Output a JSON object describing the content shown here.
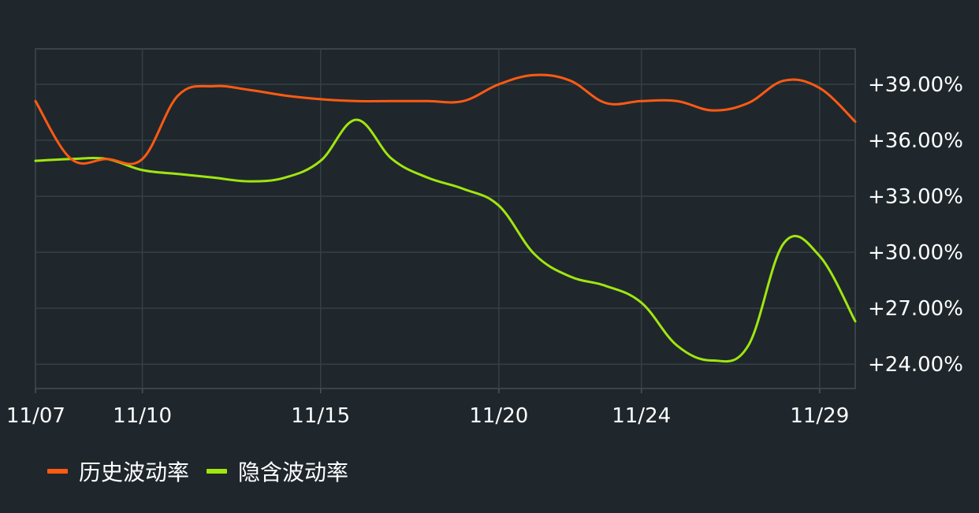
{
  "chart_data": {
    "type": "line",
    "x": [
      "11/07",
      "11/08",
      "11/09",
      "11/10",
      "11/11",
      "11/12",
      "11/13",
      "11/14",
      "11/15",
      "11/16",
      "11/17",
      "11/18",
      "11/19",
      "11/20",
      "11/21",
      "11/22",
      "11/23",
      "11/24",
      "11/25",
      "11/26",
      "11/27",
      "11/28",
      "11/29",
      "11/30"
    ],
    "x_tick_labels": [
      "11/07",
      "11/10",
      "11/15",
      "11/20",
      "11/24",
      "11/29"
    ],
    "y_tick_labels": [
      "+39.00%",
      "+36.00%",
      "+33.00%",
      "+30.00%",
      "+27.00%",
      "+24.00%"
    ],
    "y_ticks": [
      39,
      36,
      33,
      30,
      27,
      24
    ],
    "ylim": [
      22.7,
      40.9
    ],
    "grid": true,
    "legend_position": "bottom-left",
    "series": [
      {
        "name": "历史波动率",
        "color": "#ff5a12",
        "values": [
          38.1,
          35.0,
          35.0,
          35.0,
          38.4,
          38.9,
          38.7,
          38.4,
          38.2,
          38.1,
          38.1,
          38.1,
          38.1,
          39.0,
          39.5,
          39.2,
          38.0,
          38.1,
          38.1,
          37.6,
          38.0,
          39.2,
          38.8,
          37.0
        ]
      },
      {
        "name": "隐含波动率",
        "color": "#a0e60f",
        "values": [
          34.9,
          35.0,
          35.0,
          34.4,
          34.2,
          34.0,
          33.8,
          34.0,
          34.9,
          37.1,
          35.0,
          34.0,
          33.4,
          32.5,
          29.9,
          28.7,
          28.2,
          27.3,
          25.0,
          24.2,
          25.0,
          30.5,
          29.8,
          26.3
        ]
      }
    ]
  },
  "legend": {
    "items": [
      {
        "label": "历史波动率",
        "color": "#ff5a12"
      },
      {
        "label": "隐含波动率",
        "color": "#a0e60f"
      }
    ]
  }
}
